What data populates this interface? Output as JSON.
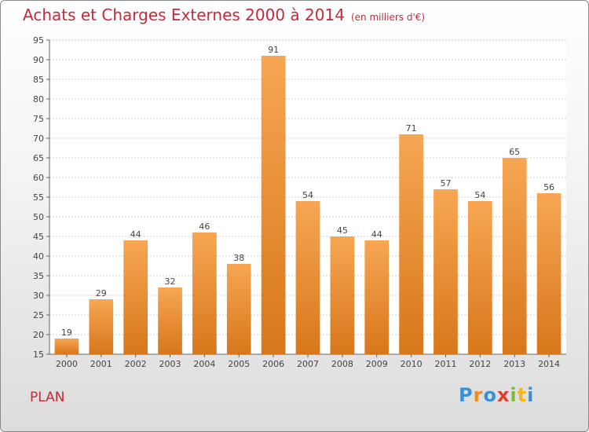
{
  "header": {
    "title": "Achats et Charges Externes 2000 à 2014",
    "subtitle": "(en milliers d'€)"
  },
  "footer": {
    "location": "PLAN",
    "logo_letters": [
      "P",
      "r",
      "o",
      "x",
      "i",
      "t",
      "i"
    ],
    "logo_colors": [
      "#3a8fd6",
      "#f08a1c",
      "#3a8fd6",
      "#e23a2e",
      "#7fb93a",
      "#f0b81c",
      "#3a8fd6"
    ]
  },
  "colors": {
    "bar_top": "#f7a653",
    "bar_bottom": "#d7771b",
    "grid": "#cccccc"
  },
  "chart_data": {
    "type": "bar",
    "title": "Achats et Charges Externes 2000 à 2014",
    "subtitle": "(en milliers d'€)",
    "categories": [
      "2000",
      "2001",
      "2002",
      "2003",
      "2004",
      "2005",
      "2006",
      "2007",
      "2008",
      "2009",
      "2010",
      "2011",
      "2012",
      "2013",
      "2014"
    ],
    "values": [
      19,
      29,
      44,
      32,
      46,
      38,
      91,
      54,
      45,
      44,
      71,
      57,
      54,
      65,
      56
    ],
    "ylim": [
      15,
      95
    ],
    "yticks": [
      15,
      20,
      25,
      30,
      35,
      40,
      45,
      50,
      55,
      60,
      65,
      70,
      75,
      80,
      85,
      90,
      95
    ],
    "grid": true,
    "xlabel": "",
    "ylabel": ""
  }
}
